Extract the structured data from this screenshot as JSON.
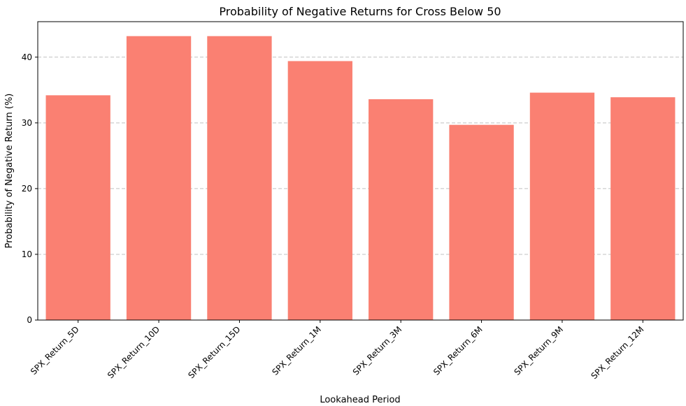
{
  "chart_data": {
    "type": "bar",
    "title": "Probability of Negative Returns for Cross Below 50",
    "xlabel": "Lookahead Period",
    "ylabel": "Probability of Negative Return (%)",
    "categories": [
      "SPX_Return_5D",
      "SPX_Return_10D",
      "SPX_Return_15D",
      "SPX_Return_1M",
      "SPX_Return_3M",
      "SPX_Return_6M",
      "SPX_Return_9M",
      "SPX_Return_12M"
    ],
    "values": [
      34.2,
      43.2,
      43.2,
      39.4,
      33.6,
      29.7,
      34.6,
      33.9
    ],
    "ylim": [
      0,
      45.4
    ],
    "yticks": [
      0,
      10,
      20,
      30,
      40
    ],
    "grid": "y-dashed",
    "legend": "none",
    "bar_color": "#fa8072",
    "grid_color": "#c0c0c0"
  }
}
